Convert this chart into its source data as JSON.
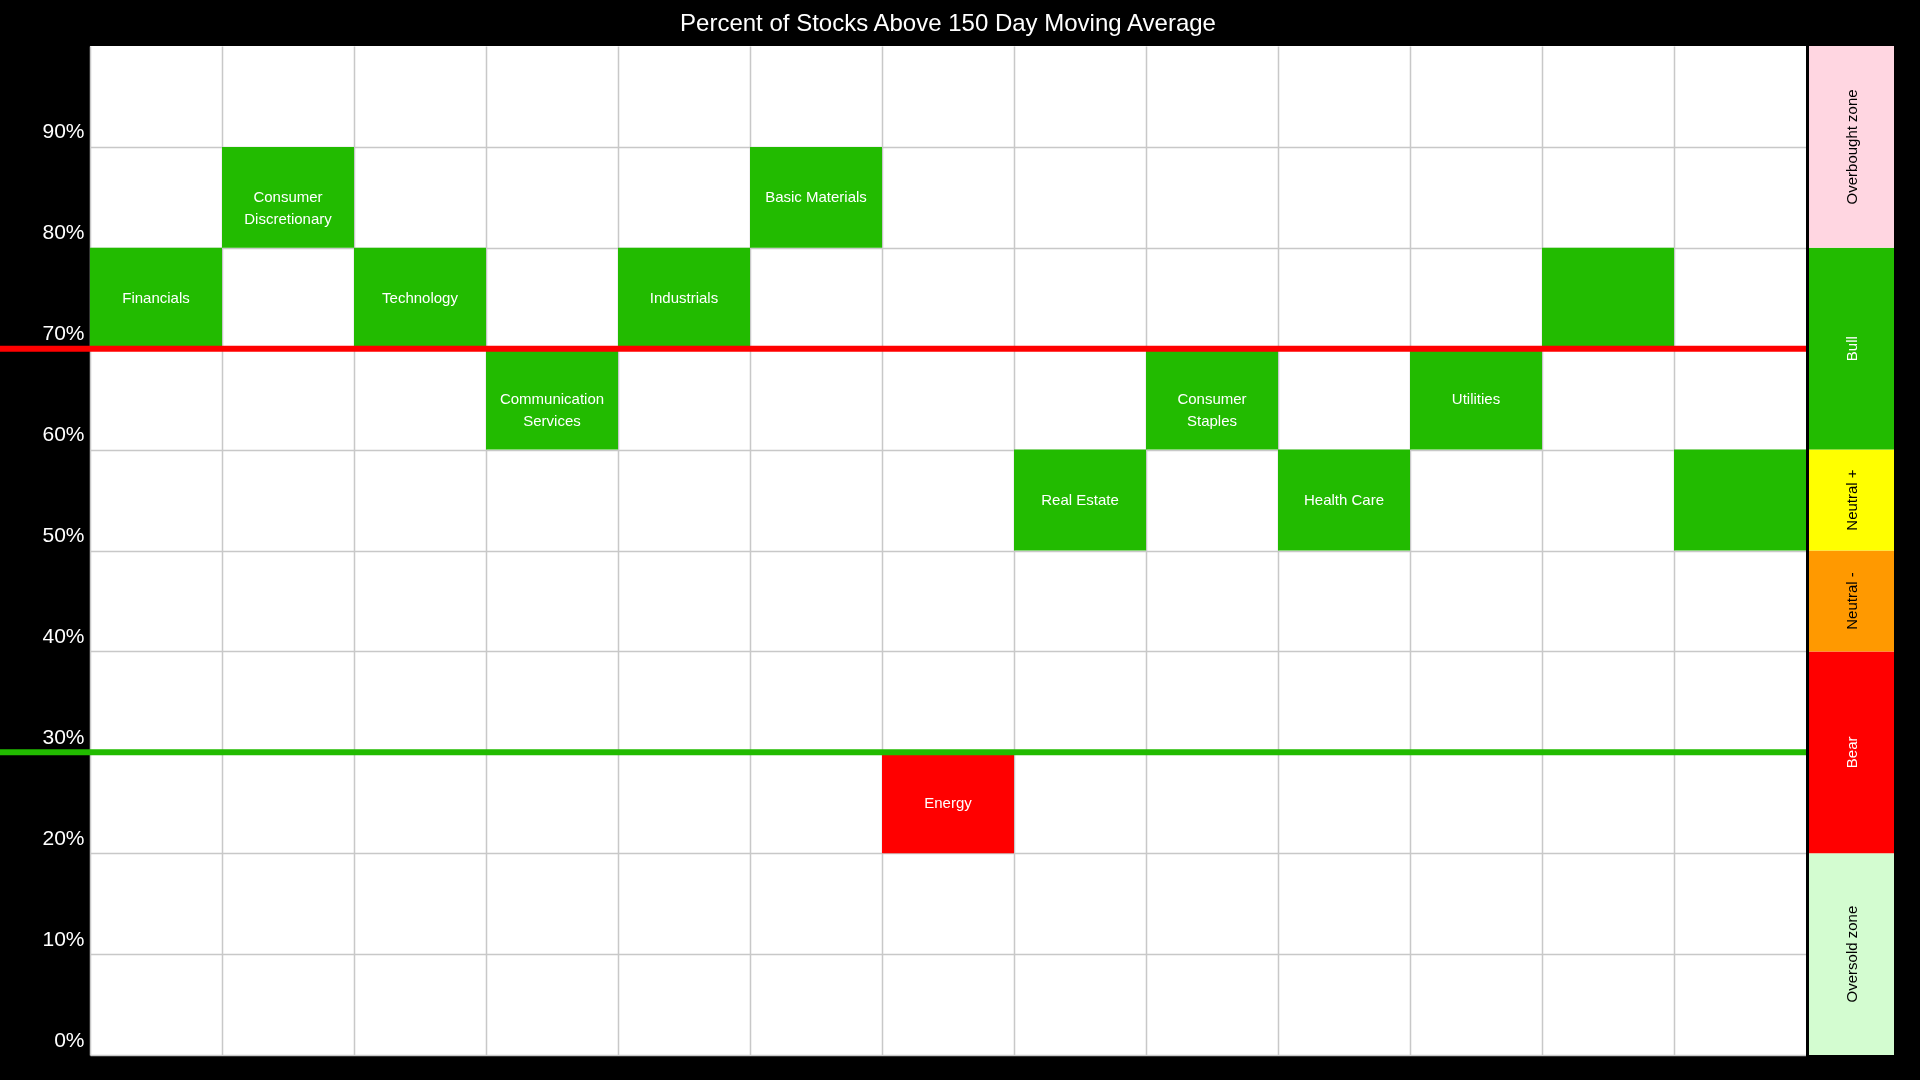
{
  "chart_data": [
    {
      "type": "bar",
      "title": "Percent of Stocks Above 150 Day Moving Average",
      "categories": [
        "Financials",
        "Consumer Discretionary",
        "Technology",
        "Communication Services",
        "Industrials",
        "Basic Materials",
        "Energy",
        "Real Estate",
        "Consumer Staples",
        "Health Care",
        "Utilities",
        null,
        null
      ],
      "base": [
        70,
        80,
        70,
        60,
        70,
        80,
        20,
        50,
        60,
        50,
        60,
        70,
        50
      ],
      "values": [
        10,
        10,
        10,
        10,
        10,
        10,
        10,
        10,
        10,
        10,
        10,
        10,
        10
      ],
      "colors": [
        "#22bb00",
        "#22bb00",
        "#22bb00",
        "#22bb00",
        "#22bb00",
        "#22bb00",
        "#ff0000",
        "#22bb00",
        "#22bb00",
        "#22bb00",
        "#22bb00",
        "#22bb00",
        "#22bb00"
      ],
      "ylim": [
        0,
        100
      ],
      "yticks": [
        {
          "value": 0,
          "label": "0%"
        },
        {
          "value": 10,
          "label": "10%"
        },
        {
          "value": 20,
          "label": "20%"
        },
        {
          "value": 30,
          "label": "30%"
        },
        {
          "value": 40,
          "label": "40%"
        },
        {
          "value": 50,
          "label": "50%"
        },
        {
          "value": 60,
          "label": "60%"
        },
        {
          "value": 70,
          "label": "70%"
        },
        {
          "value": 80,
          "label": "80%"
        },
        {
          "value": 90,
          "label": "90%"
        }
      ],
      "grid": true,
      "tick_labels": "y",
      "ref_lines": [
        {
          "axis": "y",
          "value": 70,
          "color": "#ff0000"
        },
        {
          "axis": "y",
          "value": 30,
          "color": "#22bb00"
        }
      ]
    },
    {
      "type": "bar",
      "stacked": true,
      "categories": [
        null
      ],
      "ylim": [
        0,
        100
      ],
      "tick_labels": false,
      "series": [
        {
          "name": "Oversold zone",
          "color": "#d3fcd0",
          "values": [
            20
          ]
        },
        {
          "name": "Bear",
          "color": "#ff0000",
          "values": [
            20
          ]
        },
        {
          "name": "Neutral -",
          "color": "#ff9900",
          "values": [
            10
          ]
        },
        {
          "name": "Neutral +",
          "color": "#ffff00",
          "values": [
            10
          ]
        },
        {
          "name": "Bull",
          "color": "#22bb00",
          "values": [
            20
          ]
        },
        {
          "name": "Overbought zone",
          "color": "#ffd6e1",
          "values": [
            20
          ]
        }
      ]
    }
  ]
}
